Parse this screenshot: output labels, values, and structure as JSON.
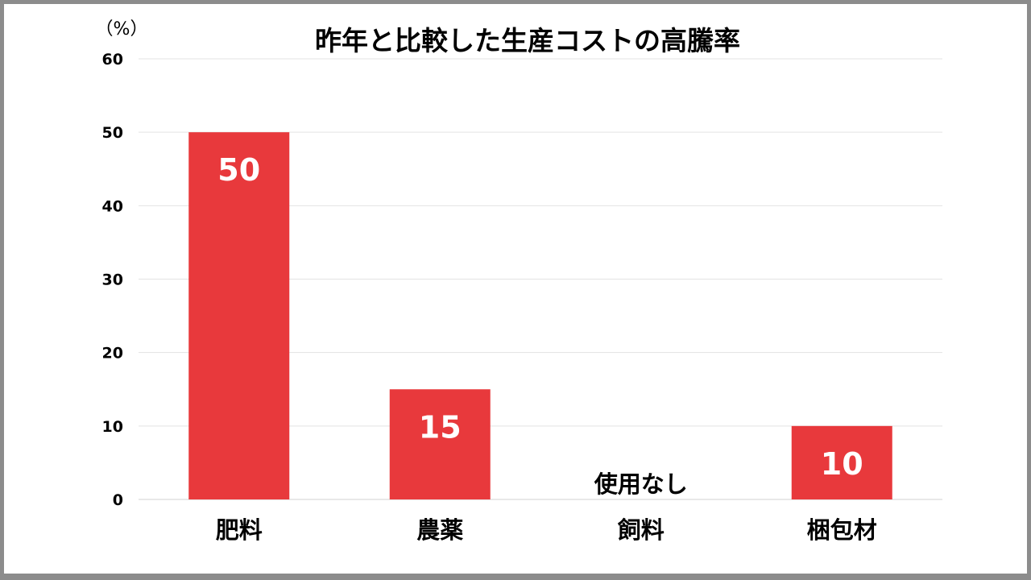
{
  "chart_data": {
    "type": "bar",
    "title": "昨年と比較した生産コストの高騰率",
    "ylabel": "（%）",
    "xlabel": "",
    "categories": [
      "肥料",
      "農薬",
      "飼料",
      "梱包材"
    ],
    "values": [
      50,
      15,
      null,
      10
    ],
    "data_labels": [
      "50",
      "15",
      "使用なし",
      "10"
    ],
    "ylim": [
      0,
      60
    ],
    "yticks": [
      0,
      10,
      20,
      30,
      40,
      50,
      60
    ],
    "grid": true,
    "legend": "none",
    "bar_color": "#e8393c"
  }
}
